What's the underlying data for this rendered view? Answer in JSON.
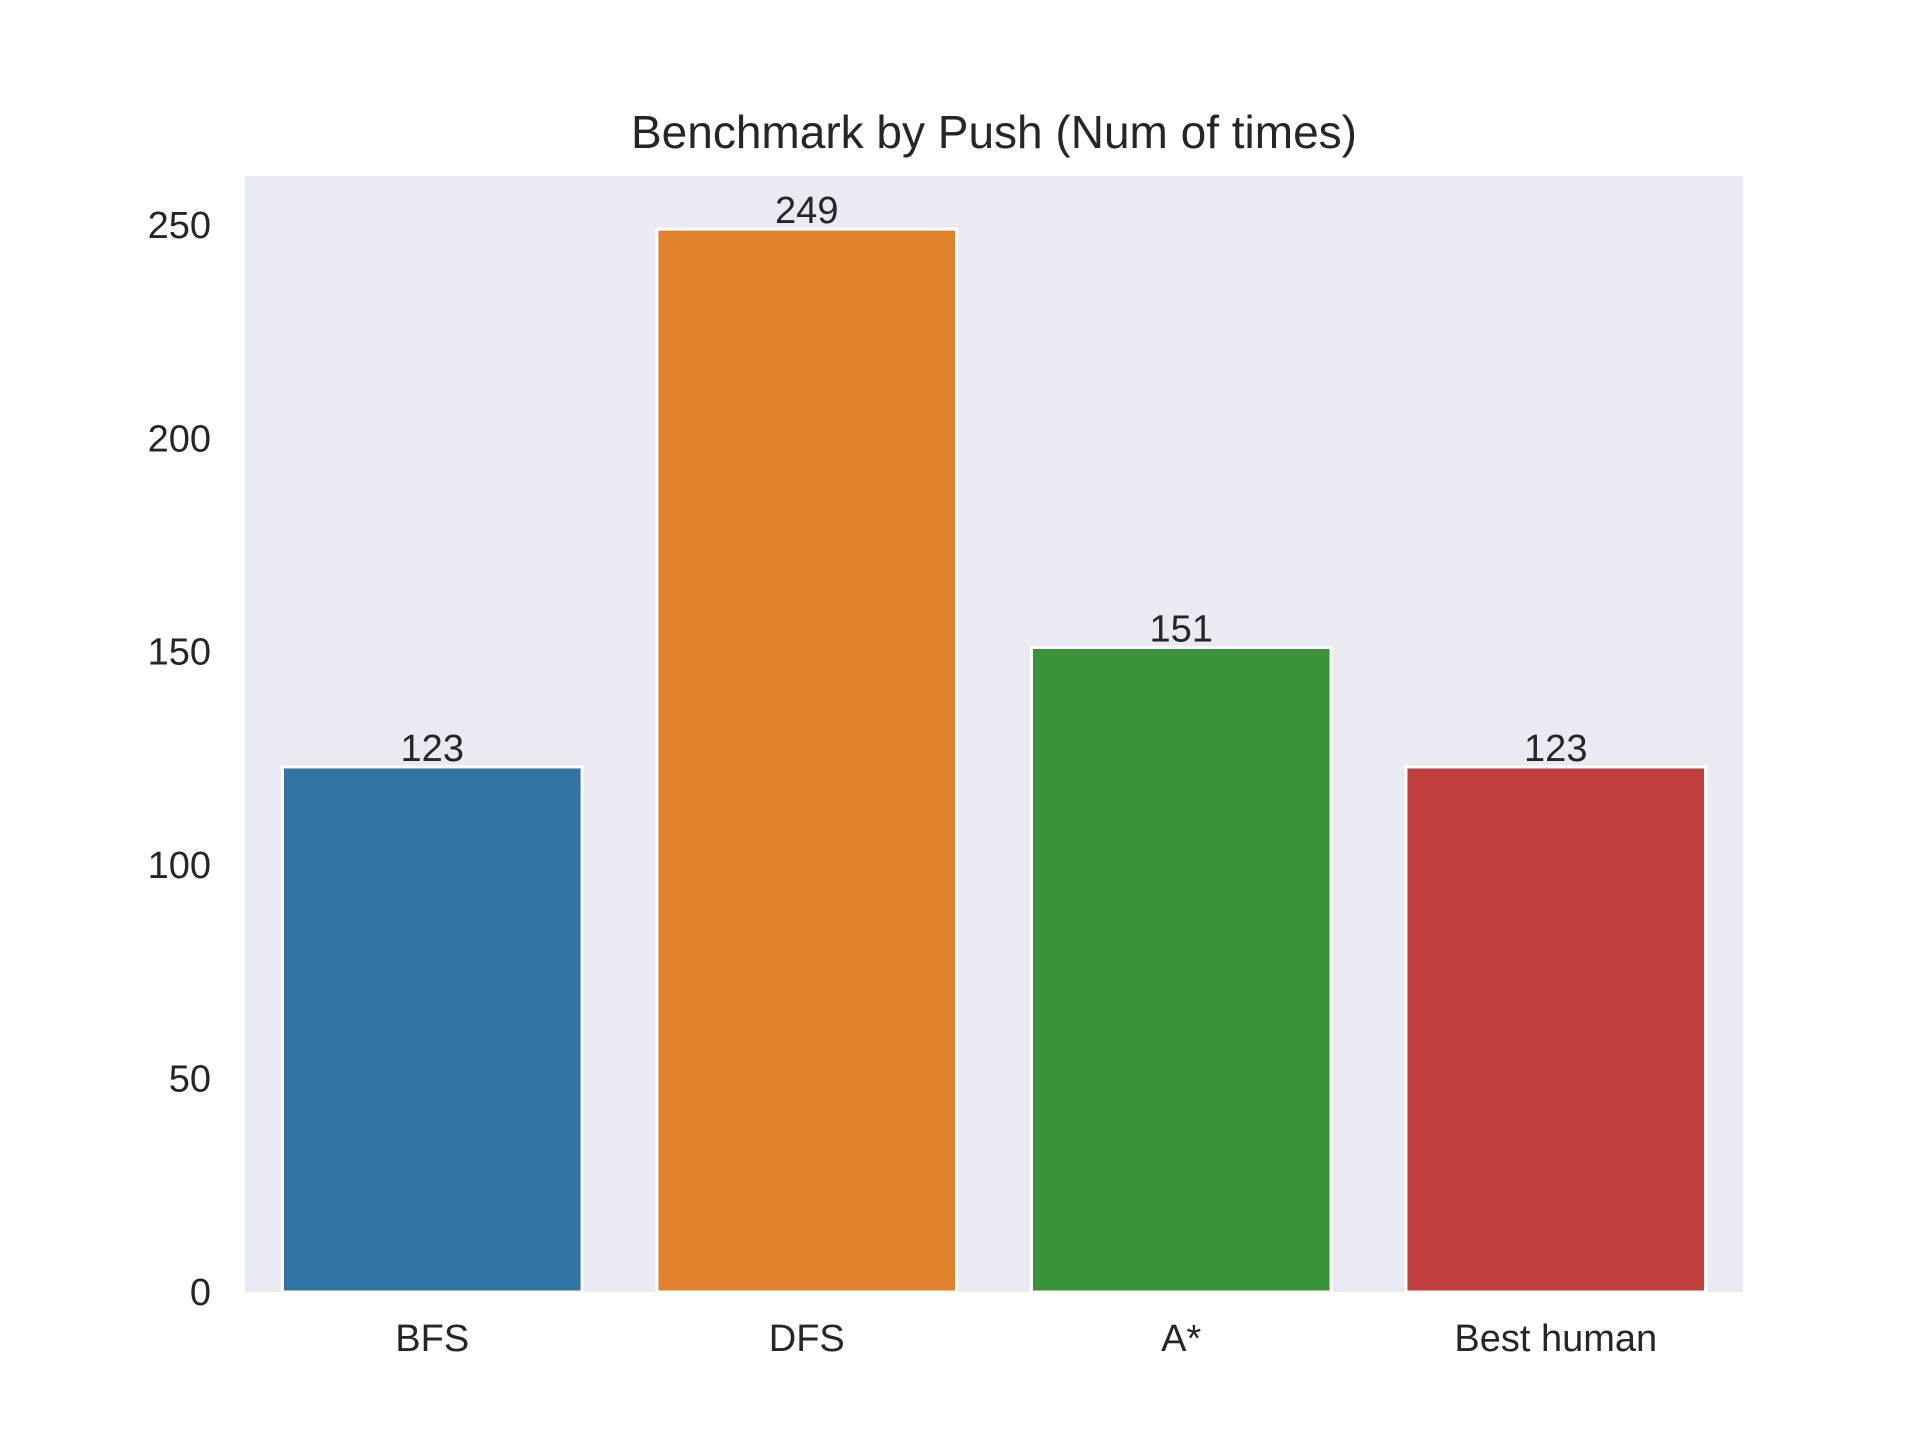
{
  "chart_data": {
    "type": "bar",
    "title": "Benchmark by Push (Num of times)",
    "xlabel": "",
    "ylabel": "",
    "categories": [
      "BFS",
      "DFS",
      "A*",
      "Best human"
    ],
    "values": [
      123,
      249,
      151,
      123
    ],
    "data_labels": [
      "123",
      "249",
      "151",
      "123"
    ],
    "colors": [
      "#3274a1",
      "#e1812c",
      "#3a923a",
      "#c03d3e"
    ],
    "ylim": [
      0,
      261.45
    ],
    "yticks": [
      0,
      50,
      100,
      150,
      200,
      250
    ],
    "ytick_labels": [
      "0",
      "50",
      "100",
      "150",
      "200",
      "250"
    ],
    "grid": false,
    "plot_background": "#eaeaf2",
    "bar_edge_color": "#ffffff"
  }
}
